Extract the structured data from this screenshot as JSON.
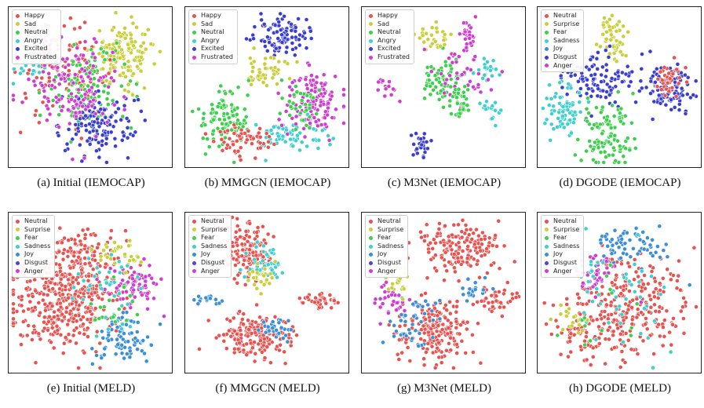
{
  "figure": {
    "captions": [
      "(a) Initial (IEMOCAP)",
      "(b) MMGCN (IEMOCAP)",
      "(c) M3Net (IEMOCAP)",
      "(d) DGODE (IEMOCAP)",
      "(e) Initial (MELD)",
      "(f) MMGCN (MELD)",
      "(g) M3Net (MELD)",
      "(h) DGODE (MELD)"
    ]
  },
  "legends": {
    "iemocap": [
      {
        "label": "Happy",
        "color": "#e8534f"
      },
      {
        "label": "Sad",
        "color": "#c9cf3a"
      },
      {
        "label": "Neutral",
        "color": "#3fcf4f"
      },
      {
        "label": "Angry",
        "color": "#3ecfcf"
      },
      {
        "label": "Excited",
        "color": "#3a3fcf"
      },
      {
        "label": "Frustrated",
        "color": "#cf3fcf"
      }
    ],
    "iemocap_dgode": [
      {
        "label": "Neutral",
        "color": "#e8534f"
      },
      {
        "label": "Surprise",
        "color": "#c9cf3a"
      },
      {
        "label": "Fear",
        "color": "#3fcf4f"
      },
      {
        "label": "Sadness",
        "color": "#3ecfcf"
      },
      {
        "label": "Joy",
        "color": "#3a8fd8"
      },
      {
        "label": "Disgust",
        "color": "#3a3fcf"
      },
      {
        "label": "Anger",
        "color": "#cf3fcf"
      }
    ],
    "meld": [
      {
        "label": "Neutral",
        "color": "#e8534f"
      },
      {
        "label": "Surprise",
        "color": "#c9cf3a"
      },
      {
        "label": "Fear",
        "color": "#3fcf4f"
      },
      {
        "label": "Sadness",
        "color": "#3ecfcf"
      },
      {
        "label": "Joy",
        "color": "#3a8fd8"
      },
      {
        "label": "Disgust",
        "color": "#5a3fcf"
      },
      {
        "label": "Anger",
        "color": "#cf3fcf"
      }
    ]
  },
  "chart_data": [
    {
      "type": "scatter",
      "title": "(a) Initial (IEMOCAP)",
      "legend": "iemocap",
      "legend_placement": "top-left",
      "xlim": [
        0,
        1
      ],
      "ylim": [
        0,
        1
      ],
      "clusters": [
        {
          "class": 1,
          "cx": 0.72,
          "cy": 0.72,
          "sx": 0.1,
          "sy": 0.1,
          "n": 150
        },
        {
          "class": 0,
          "cx": 0.32,
          "cy": 0.6,
          "sx": 0.14,
          "sy": 0.14,
          "n": 120
        },
        {
          "class": 2,
          "cx": 0.5,
          "cy": 0.5,
          "sx": 0.14,
          "sy": 0.14,
          "n": 110
        },
        {
          "class": 3,
          "cx": 0.1,
          "cy": 0.66,
          "sx": 0.06,
          "sy": 0.06,
          "n": 25
        },
        {
          "class": 4,
          "cx": 0.55,
          "cy": 0.25,
          "sx": 0.12,
          "sy": 0.1,
          "n": 130
        },
        {
          "class": 5,
          "cx": 0.38,
          "cy": 0.5,
          "sx": 0.16,
          "sy": 0.16,
          "n": 130
        }
      ]
    },
    {
      "type": "scatter",
      "title": "(b) MMGCN (IEMOCAP)",
      "legend": "iemocap",
      "legend_placement": "top-left",
      "xlim": [
        0,
        1
      ],
      "ylim": [
        0,
        1
      ],
      "clusters": [
        {
          "class": 4,
          "cx": 0.6,
          "cy": 0.85,
          "sx": 0.08,
          "sy": 0.06,
          "n": 110
        },
        {
          "class": 1,
          "cx": 0.5,
          "cy": 0.6,
          "sx": 0.08,
          "sy": 0.05,
          "n": 45
        },
        {
          "class": 2,
          "cx": 0.22,
          "cy": 0.3,
          "sx": 0.08,
          "sy": 0.1,
          "n": 110
        },
        {
          "class": 3,
          "cx": 0.65,
          "cy": 0.18,
          "sx": 0.13,
          "sy": 0.06,
          "n": 70
        },
        {
          "class": 5,
          "cx": 0.82,
          "cy": 0.4,
          "sx": 0.09,
          "sy": 0.1,
          "n": 130
        },
        {
          "class": 0,
          "cx": 0.35,
          "cy": 0.15,
          "sx": 0.1,
          "sy": 0.06,
          "n": 60
        },
        {
          "class": 2,
          "cx": 0.72,
          "cy": 0.38,
          "sx": 0.06,
          "sy": 0.08,
          "n": 35
        }
      ]
    },
    {
      "type": "scatter",
      "title": "(c) M3Net (IEMOCAP)",
      "legend": "iemocap",
      "legend_placement": "top-left",
      "xlim": [
        0,
        1
      ],
      "ylim": [
        0,
        1
      ],
      "clusters": [
        {
          "class": 5,
          "cx": 0.66,
          "cy": 0.85,
          "sx": 0.02,
          "sy": 0.05,
          "n": 30
        },
        {
          "class": 2,
          "cx": 0.5,
          "cy": 0.55,
          "sx": 0.08,
          "sy": 0.07,
          "n": 70
        },
        {
          "class": 1,
          "cx": 0.44,
          "cy": 0.82,
          "sx": 0.06,
          "sy": 0.05,
          "n": 30
        },
        {
          "class": 3,
          "cx": 0.78,
          "cy": 0.62,
          "sx": 0.04,
          "sy": 0.04,
          "n": 20
        },
        {
          "class": 4,
          "cx": 0.35,
          "cy": 0.12,
          "sx": 0.03,
          "sy": 0.05,
          "n": 25
        },
        {
          "class": 5,
          "cx": 0.6,
          "cy": 0.6,
          "sx": 0.1,
          "sy": 0.1,
          "n": 40
        },
        {
          "class": 2,
          "cx": 0.62,
          "cy": 0.4,
          "sx": 0.04,
          "sy": 0.06,
          "n": 35
        },
        {
          "class": 5,
          "cx": 0.12,
          "cy": 0.5,
          "sx": 0.03,
          "sy": 0.04,
          "n": 15
        },
        {
          "class": 3,
          "cx": 0.82,
          "cy": 0.35,
          "sx": 0.03,
          "sy": 0.05,
          "n": 18
        }
      ]
    },
    {
      "type": "scatter",
      "title": "(d) DGODE (IEMOCAP)",
      "legend": "iemocap_dgode",
      "legend_placement": "top-left",
      "xlim": [
        0,
        1
      ],
      "ylim": [
        0,
        1
      ],
      "clusters": [
        {
          "class": 1,
          "cx": 0.46,
          "cy": 0.82,
          "sx": 0.04,
          "sy": 0.08,
          "n": 60
        },
        {
          "class": 5,
          "cx": 0.35,
          "cy": 0.55,
          "sx": 0.12,
          "sy": 0.1,
          "n": 110
        },
        {
          "class": 3,
          "cx": 0.14,
          "cy": 0.35,
          "sx": 0.06,
          "sy": 0.1,
          "n": 80
        },
        {
          "class": 2,
          "cx": 0.42,
          "cy": 0.18,
          "sx": 0.08,
          "sy": 0.1,
          "n": 110
        },
        {
          "class": 5,
          "cx": 0.82,
          "cy": 0.5,
          "sx": 0.08,
          "sy": 0.08,
          "n": 100
        },
        {
          "class": 0,
          "cx": 0.82,
          "cy": 0.55,
          "sx": 0.06,
          "sy": 0.05,
          "n": 40
        }
      ]
    },
    {
      "type": "scatter",
      "title": "(e) Initial (MELD)",
      "legend": "meld",
      "legend_placement": "top-left",
      "xlim": [
        0,
        1
      ],
      "ylim": [
        0,
        1
      ],
      "clusters": [
        {
          "class": 0,
          "cx": 0.35,
          "cy": 0.45,
          "sx": 0.18,
          "sy": 0.16,
          "n": 420
        },
        {
          "class": 0,
          "cx": 0.45,
          "cy": 0.78,
          "sx": 0.1,
          "sy": 0.08,
          "n": 90
        },
        {
          "class": 6,
          "cx": 0.78,
          "cy": 0.55,
          "sx": 0.08,
          "sy": 0.07,
          "n": 70
        },
        {
          "class": 4,
          "cx": 0.72,
          "cy": 0.2,
          "sx": 0.1,
          "sy": 0.08,
          "n": 80
        },
        {
          "class": 1,
          "cx": 0.68,
          "cy": 0.75,
          "sx": 0.07,
          "sy": 0.05,
          "n": 35
        },
        {
          "class": 3,
          "cx": 0.6,
          "cy": 0.5,
          "sx": 0.12,
          "sy": 0.12,
          "n": 40
        },
        {
          "class": 2,
          "cx": 0.6,
          "cy": 0.4,
          "sx": 0.1,
          "sy": 0.1,
          "n": 20
        }
      ]
    },
    {
      "type": "scatter",
      "title": "(f) MMGCN (MELD)",
      "legend": "meld",
      "legend_placement": "top-left",
      "xlim": [
        0,
        1
      ],
      "ylim": [
        0,
        1
      ],
      "clusters": [
        {
          "class": 0,
          "cx": 0.38,
          "cy": 0.78,
          "sx": 0.08,
          "sy": 0.09,
          "n": 150
        },
        {
          "class": 3,
          "cx": 0.5,
          "cy": 0.7,
          "sx": 0.06,
          "sy": 0.06,
          "n": 45
        },
        {
          "class": 1,
          "cx": 0.46,
          "cy": 0.6,
          "sx": 0.05,
          "sy": 0.04,
          "n": 25
        },
        {
          "class": 0,
          "cx": 0.42,
          "cy": 0.22,
          "sx": 0.12,
          "sy": 0.07,
          "n": 190
        },
        {
          "class": 4,
          "cx": 0.55,
          "cy": 0.25,
          "sx": 0.06,
          "sy": 0.05,
          "n": 30
        },
        {
          "class": 0,
          "cx": 0.87,
          "cy": 0.45,
          "sx": 0.06,
          "sy": 0.03,
          "n": 40
        },
        {
          "class": 4,
          "cx": 0.12,
          "cy": 0.45,
          "sx": 0.05,
          "sy": 0.02,
          "n": 15
        }
      ]
    },
    {
      "type": "scatter",
      "title": "(g) M3Net (MELD)",
      "legend": "meld",
      "legend_placement": "top-left",
      "xlim": [
        0,
        1
      ],
      "ylim": [
        0,
        1
      ],
      "clusters": [
        {
          "class": 0,
          "cx": 0.6,
          "cy": 0.8,
          "sx": 0.13,
          "sy": 0.08,
          "n": 170
        },
        {
          "class": 0,
          "cx": 0.45,
          "cy": 0.25,
          "sx": 0.12,
          "sy": 0.1,
          "n": 190
        },
        {
          "class": 4,
          "cx": 0.3,
          "cy": 0.3,
          "sx": 0.1,
          "sy": 0.1,
          "n": 50
        },
        {
          "class": 6,
          "cx": 0.15,
          "cy": 0.45,
          "sx": 0.05,
          "sy": 0.07,
          "n": 30
        },
        {
          "class": 0,
          "cx": 0.85,
          "cy": 0.45,
          "sx": 0.06,
          "sy": 0.05,
          "n": 40
        },
        {
          "class": 4,
          "cx": 0.7,
          "cy": 0.52,
          "sx": 0.06,
          "sy": 0.04,
          "n": 25
        },
        {
          "class": 1,
          "cx": 0.2,
          "cy": 0.58,
          "sx": 0.04,
          "sy": 0.04,
          "n": 20
        }
      ]
    },
    {
      "type": "scatter",
      "title": "(h) DGODE (MELD)",
      "legend": "meld",
      "legend_placement": "top-left",
      "xlim": [
        0,
        1
      ],
      "ylim": [
        0,
        1
      ],
      "clusters": [
        {
          "class": 0,
          "cx": 0.6,
          "cy": 0.45,
          "sx": 0.18,
          "sy": 0.16,
          "n": 230
        },
        {
          "class": 0,
          "cx": 0.3,
          "cy": 0.25,
          "sx": 0.12,
          "sy": 0.1,
          "n": 90
        },
        {
          "class": 4,
          "cx": 0.55,
          "cy": 0.8,
          "sx": 0.15,
          "sy": 0.08,
          "n": 70
        },
        {
          "class": 6,
          "cx": 0.35,
          "cy": 0.65,
          "sx": 0.1,
          "sy": 0.08,
          "n": 40
        },
        {
          "class": 3,
          "cx": 0.5,
          "cy": 0.5,
          "sx": 0.18,
          "sy": 0.18,
          "n": 50
        },
        {
          "class": 1,
          "cx": 0.2,
          "cy": 0.3,
          "sx": 0.05,
          "sy": 0.05,
          "n": 20
        },
        {
          "class": 2,
          "cx": 0.4,
          "cy": 0.4,
          "sx": 0.15,
          "sy": 0.15,
          "n": 15
        }
      ]
    }
  ]
}
